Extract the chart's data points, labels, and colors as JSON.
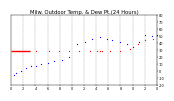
{
  "title": "Milw. Outdoor Temp. & Dew Pt.(24 Hours)",
  "title_fontsize": 3.8,
  "background_color": "#ffffff",
  "xlim": [
    0,
    288
  ],
  "ylim": [
    -20,
    80
  ],
  "yticks": [
    -20,
    -10,
    0,
    10,
    20,
    30,
    40,
    50,
    60,
    70,
    80
  ],
  "ytick_labels": [
    "-20",
    "-10",
    "0",
    "10",
    "20",
    "30",
    "40",
    "50",
    "60",
    "70",
    "80"
  ],
  "temp_color": "#0000ff",
  "dew_color": "#ff0000",
  "grid_color": "#999999",
  "vgrid_positions": [
    24,
    48,
    72,
    96,
    120,
    144,
    168,
    192,
    216,
    240,
    264,
    288
  ],
  "temp_x": [
    5,
    10,
    20,
    30,
    40,
    50,
    60,
    72,
    85,
    100,
    115,
    130,
    145,
    160,
    175,
    190,
    200,
    215,
    228,
    240,
    252,
    265,
    278,
    288
  ],
  "temp_y": [
    -5,
    -2,
    0,
    5,
    8,
    8,
    10,
    12,
    14,
    16,
    20,
    38,
    42,
    46,
    48,
    46,
    44,
    42,
    38,
    34,
    42,
    52,
    50,
    52
  ],
  "dew_x": [
    5,
    15,
    35,
    50,
    75,
    95,
    115,
    135,
    155,
    170,
    175,
    180,
    195,
    215,
    235,
    250,
    265,
    280
  ],
  "dew_y": [
    28,
    28,
    28,
    28,
    28,
    28,
    28,
    28,
    28,
    28,
    28,
    28,
    28,
    28,
    32,
    38,
    44,
    46
  ],
  "red_line_x": [
    0,
    38
  ],
  "red_line_y": [
    28,
    28
  ],
  "x_tick_positions": [
    0,
    24,
    48,
    72,
    96,
    120,
    144,
    168,
    192,
    216,
    240,
    264,
    288
  ],
  "x_tick_labels": [
    "0",
    "2",
    "4",
    "6",
    "8",
    "0",
    "2",
    "4",
    "6",
    "8",
    "0",
    "2",
    "0"
  ]
}
